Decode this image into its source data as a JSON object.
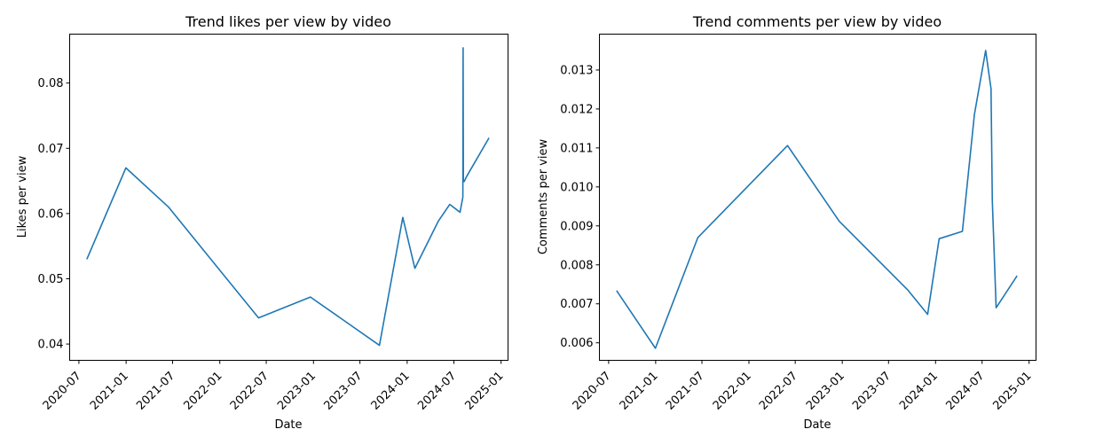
{
  "chart_data": [
    {
      "type": "line",
      "title": "Trend likes per view by video",
      "xlabel": "Date",
      "ylabel": "Likes per view",
      "x_ticks": [
        "2020-07",
        "2021-01",
        "2021-07",
        "2022-01",
        "2022-07",
        "2023-01",
        "2023-07",
        "2024-01",
        "2024-07",
        "2025-01"
      ],
      "y_ticks": [
        "0.04",
        "0.05",
        "0.06",
        "0.07",
        "0.08"
      ],
      "xlim": [
        "2020-05-26",
        "2025-01-28"
      ],
      "ylim": [
        0.0375,
        0.0875
      ],
      "line_color": "#1f77b4",
      "series": [
        {
          "x": [
            "2020-08-01",
            "2020-12-31",
            "2021-06-15",
            "2022-06-01",
            "2022-12-20",
            "2023-09-15",
            "2023-12-15",
            "2024-01-31",
            "2024-05-01",
            "2024-06-15",
            "2024-07-25",
            "2024-08-05",
            "2024-08-06",
            "2024-08-07",
            "2024-08-10",
            "2024-08-20",
            "2024-11-15"
          ],
          "y": [
            0.053,
            0.067,
            0.061,
            0.044,
            0.0472,
            0.0398,
            0.0594,
            0.0516,
            0.0588,
            0.0614,
            0.0602,
            0.0625,
            0.0854,
            0.0651,
            0.0649,
            0.0657,
            0.0716
          ]
        }
      ]
    },
    {
      "type": "line",
      "title": "Trend comments per view by video",
      "xlabel": "Date",
      "ylabel": "Comments per view",
      "x_ticks": [
        "2020-07",
        "2021-01",
        "2021-07",
        "2022-01",
        "2022-07",
        "2023-01",
        "2023-07",
        "2024-01",
        "2024-07",
        "2025-01"
      ],
      "y_ticks": [
        "0.006",
        "0.007",
        "0.008",
        "0.009",
        "0.010",
        "0.011",
        "0.012",
        "0.013"
      ],
      "xlim": [
        "2020-05-26",
        "2025-01-28"
      ],
      "ylim": [
        0.00555,
        0.01392
      ],
      "line_color": "#1f77b4",
      "series": [
        {
          "x": [
            "2020-08-01",
            "2020-12-31",
            "2021-06-15",
            "2022-06-01",
            "2022-12-20",
            "2023-09-15",
            "2023-12-01",
            "2024-01-15",
            "2024-04-15",
            "2024-06-01",
            "2024-07-15",
            "2024-08-05",
            "2024-08-10",
            "2024-08-25",
            "2024-11-15"
          ],
          "y": [
            0.00734,
            0.00586,
            0.0087,
            0.01106,
            0.00912,
            0.00735,
            0.00673,
            0.00867,
            0.00886,
            0.01186,
            0.0135,
            0.01252,
            0.00965,
            0.0069,
            0.00772
          ]
        }
      ]
    }
  ]
}
